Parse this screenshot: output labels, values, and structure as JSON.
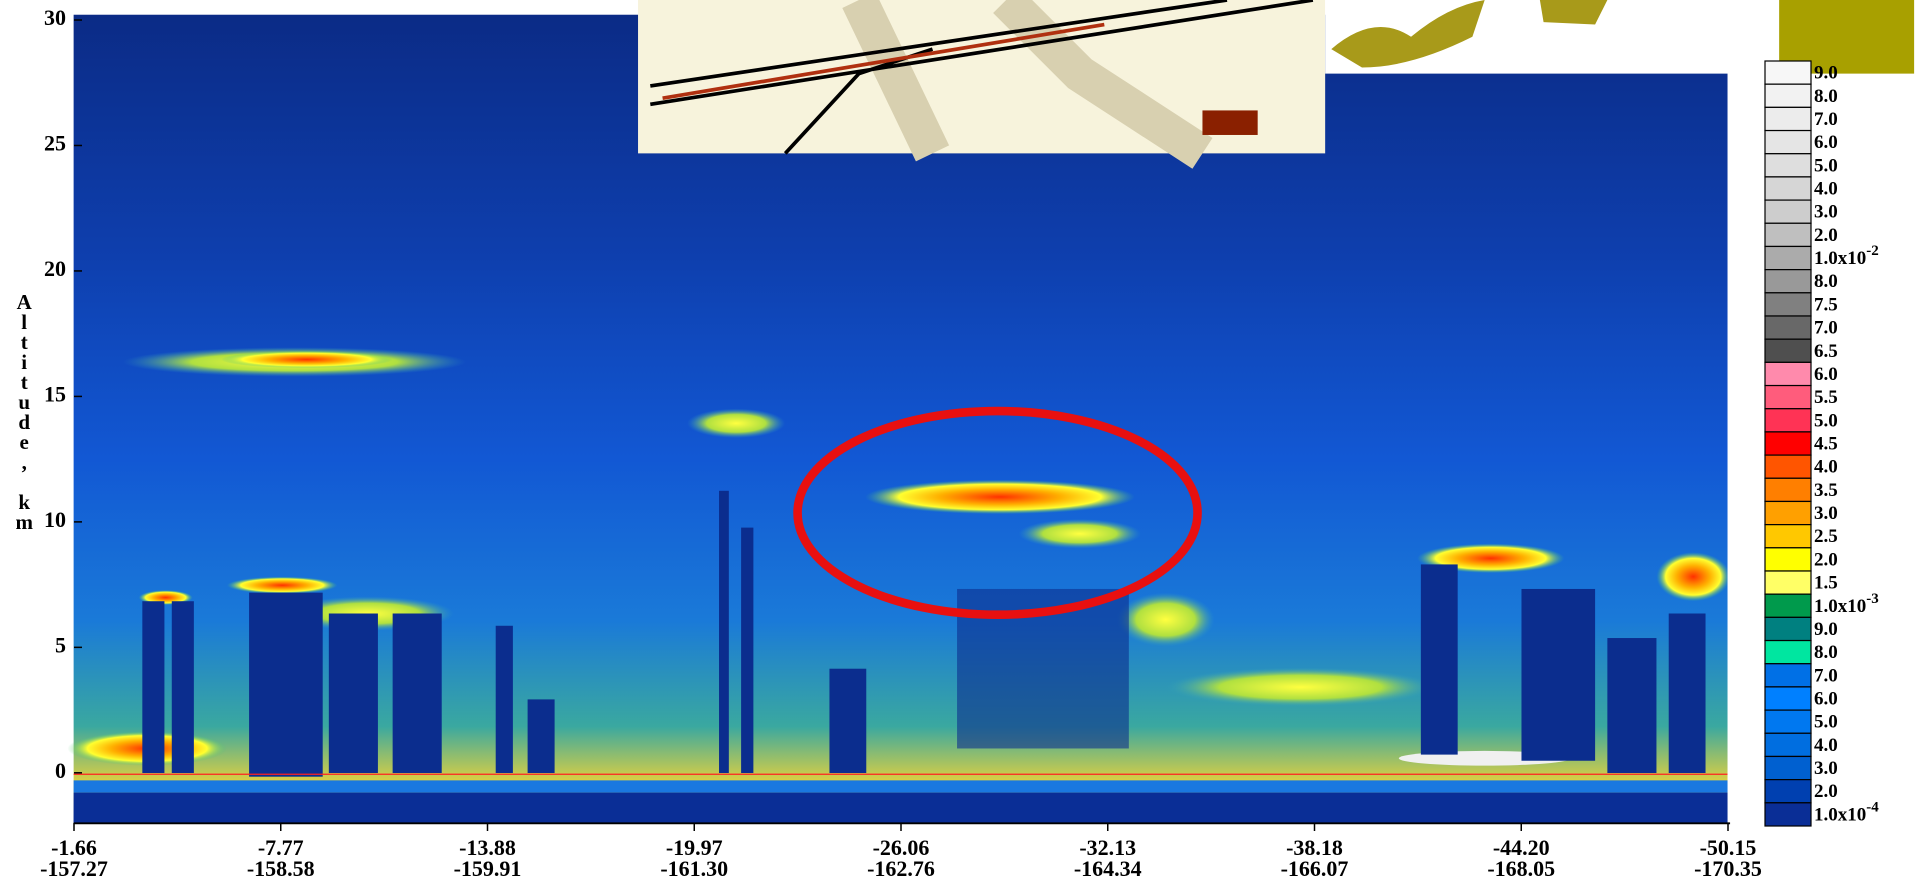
{
  "chart_data": {
    "type": "curtain",
    "y_label": "Altitude, km",
    "ylim": [
      -2,
      30.2
    ],
    "yticks": [
      0,
      5,
      10,
      15,
      20,
      25,
      30
    ],
    "lat_labels": [
      "-1.66",
      "-7.77",
      "-13.88",
      "-19.97",
      "-26.06",
      "-32.13",
      "-38.18",
      "-44.20",
      "-50.15"
    ],
    "lon_labels": [
      "-157.27",
      "-158.58",
      "-159.91",
      "-161.30",
      "-162.76",
      "-164.34",
      "-166.07",
      "-168.05",
      "-170.35"
    ],
    "colorbar": [
      {
        "value": 0.09,
        "label": "9.0",
        "color": "#f7f7f7"
      },
      {
        "value": 0.08,
        "label": "8.0",
        "color": "#f2f2f2"
      },
      {
        "value": 0.07,
        "label": "7.0",
        "color": "#ececec"
      },
      {
        "value": 0.06,
        "label": "6.0",
        "color": "#e5e5e5"
      },
      {
        "value": 0.05,
        "label": "5.0",
        "color": "#dedede"
      },
      {
        "value": 0.04,
        "label": "4.0",
        "color": "#d6d6d6"
      },
      {
        "value": 0.03,
        "label": "3.0",
        "color": "#cdcdcd"
      },
      {
        "value": 0.02,
        "label": "2.0",
        "color": "#bfbfbf"
      },
      {
        "value": 0.01,
        "label": "1.0x10",
        "exponent": "-2",
        "color": "#ababab"
      },
      {
        "value": 0.008,
        "label": "8.0",
        "color": "#999999"
      },
      {
        "value": 0.0075,
        "label": "7.5",
        "color": "#808080"
      },
      {
        "value": 0.007,
        "label": "7.0",
        "color": "#686868"
      },
      {
        "value": 0.0065,
        "label": "6.5",
        "color": "#4f4f4f"
      },
      {
        "value": 0.006,
        "label": "6.0",
        "color": "#ff8aac"
      },
      {
        "value": 0.0055,
        "label": "5.5",
        "color": "#ff5c7c"
      },
      {
        "value": 0.005,
        "label": "5.0",
        "color": "#ff3355"
      },
      {
        "value": 0.0045,
        "label": "4.5",
        "color": "#ff0000"
      },
      {
        "value": 0.004,
        "label": "4.0",
        "color": "#ff5500"
      },
      {
        "value": 0.0035,
        "label": "3.5",
        "color": "#ff7f00"
      },
      {
        "value": 0.003,
        "label": "3.0",
        "color": "#ffa000"
      },
      {
        "value": 0.0025,
        "label": "2.5",
        "color": "#ffc800"
      },
      {
        "value": 0.002,
        "label": "2.0",
        "color": "#ffff00"
      },
      {
        "value": 0.0015,
        "label": "1.5",
        "color": "#ffff66"
      },
      {
        "value": 0.001,
        "label": "1.0x10",
        "exponent": "-3",
        "color": "#009a4c"
      },
      {
        "value": 0.0009,
        "label": "9.0",
        "color": "#008080"
      },
      {
        "value": 0.0008,
        "label": "8.0",
        "color": "#00e6a0"
      },
      {
        "value": 0.0007,
        "label": "7.0",
        "color": "#0070e6"
      },
      {
        "value": 0.0006,
        "label": "6.0",
        "color": "#0080ff"
      },
      {
        "value": 0.0005,
        "label": "5.0",
        "color": "#0078f0"
      },
      {
        "value": 0.0004,
        "label": "4.0",
        "color": "#006ee0"
      },
      {
        "value": 0.0003,
        "label": "3.0",
        "color": "#0060d0"
      },
      {
        "value": 0.0002,
        "label": "2.0",
        "color": "#0040b0"
      },
      {
        "value": 0.0001,
        "label": "1.0x10",
        "exponent": "-4",
        "color": "#0a2e96"
      }
    ]
  }
}
